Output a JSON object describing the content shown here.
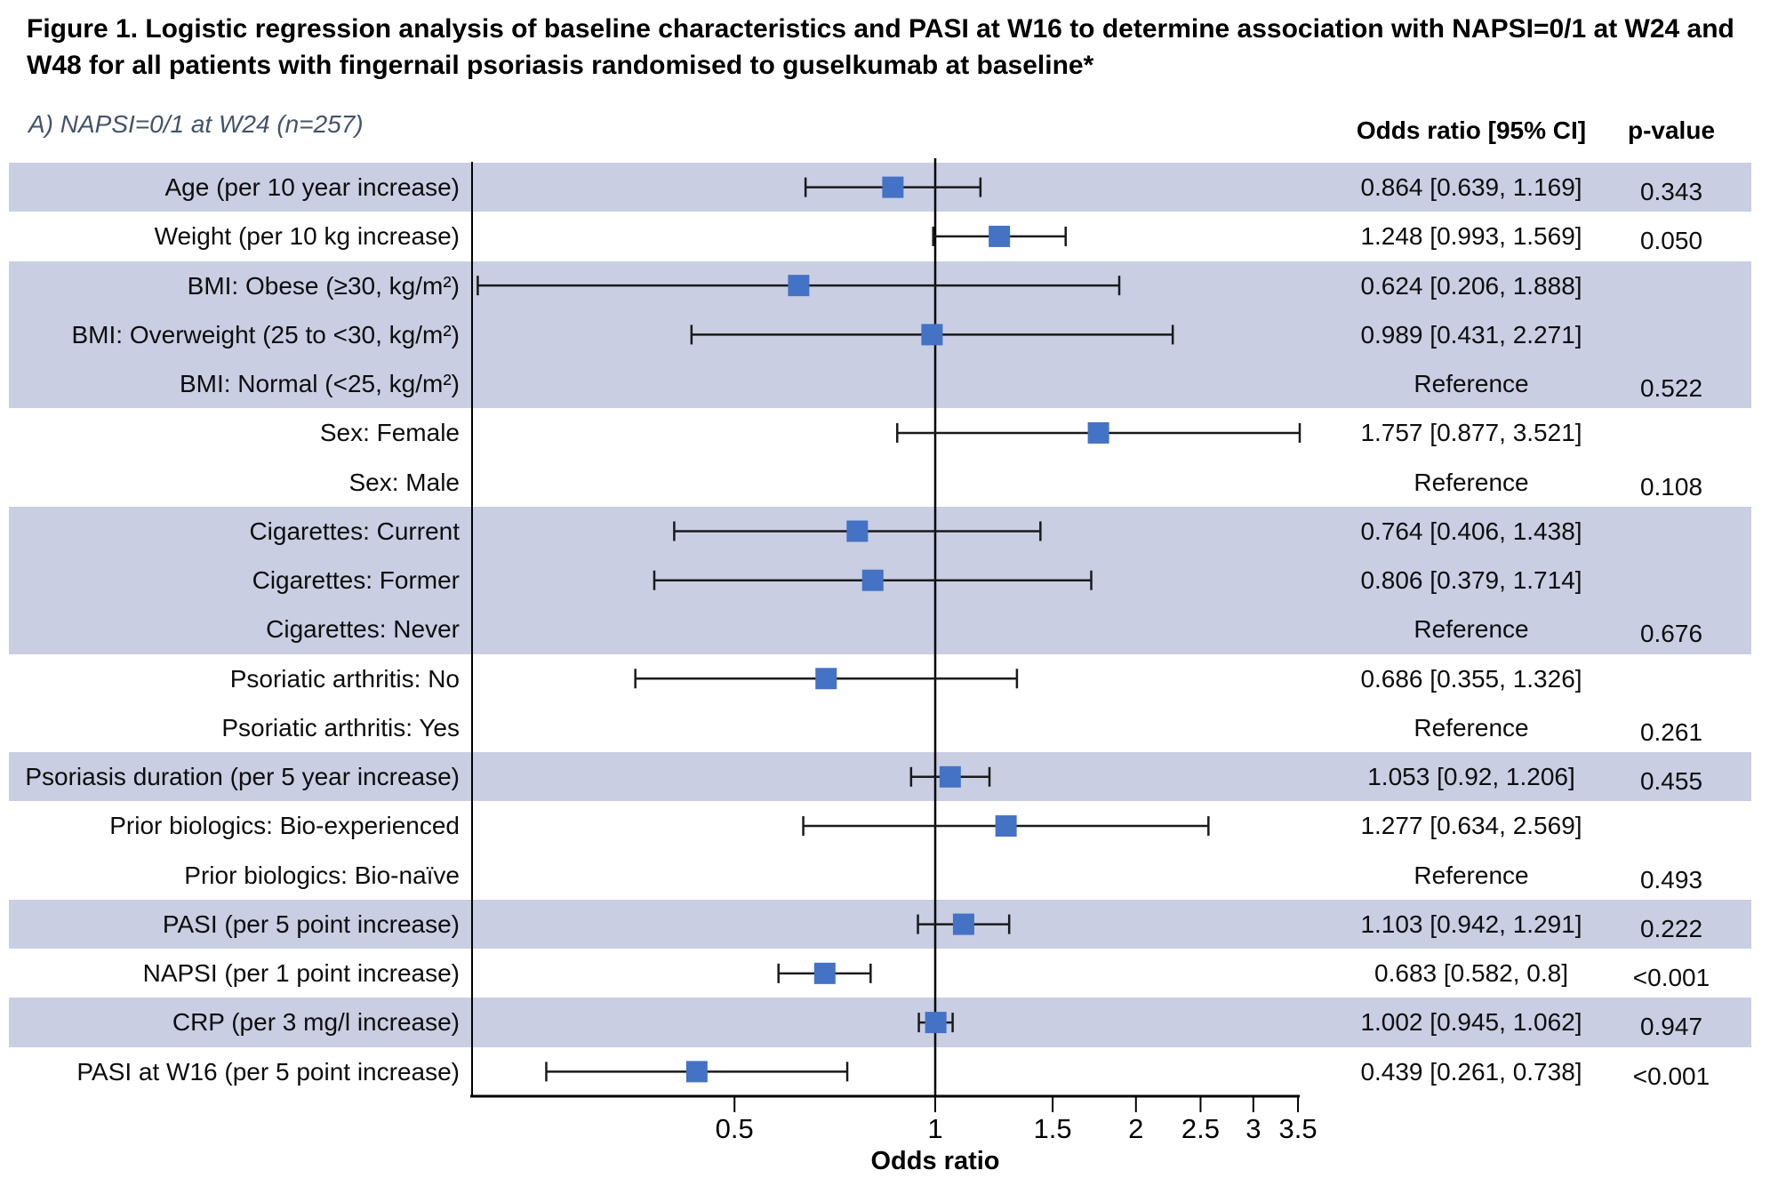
{
  "figure": {
    "title_line1": "Figure 1. Logistic regression analysis of baseline characteristics and PASI at W16 to determine association with NAPSI=0/1 at W24 and",
    "title_line2": "W48 for all patients with fingernail psoriasis randomised to guselkumab at baseline*",
    "subtitle": "A) NAPSI=0/1 at W24 (n=257)"
  },
  "columns": {
    "or_header": "Odds ratio [95% CI]",
    "p_header": "p-value"
  },
  "chart_data": {
    "type": "scatter",
    "subtype": "forest-plot",
    "xscale": "log",
    "xlabel": "Odds ratio",
    "xlim": [
      0.202,
      3.52
    ],
    "reference_line": 1,
    "xticks": [
      0.5,
      1,
      1.5,
      2,
      2.5,
      3,
      3.5
    ],
    "xtick_labels": [
      "0.5",
      "1",
      "1.5",
      "2",
      "2.5",
      "3",
      "3.5"
    ],
    "grid": false,
    "legend": "none",
    "rows": [
      {
        "label": "Age (per 10 year increase)",
        "or": 0.864,
        "ci_low": 0.639,
        "ci_high": 1.169,
        "or_text": "0.864 [0.639, 1.169]",
        "p": "0.343",
        "shaded": true
      },
      {
        "label": "Weight (per 10 kg increase)",
        "or": 1.248,
        "ci_low": 0.993,
        "ci_high": 1.569,
        "or_text": "1.248 [0.993, 1.569]",
        "p": "0.050",
        "shaded": false
      },
      {
        "label": "BMI: Obese (≥30, kg/m²)",
        "or": 0.624,
        "ci_low": 0.206,
        "ci_high": 1.888,
        "or_text": "0.624 [0.206, 1.888]",
        "p": "",
        "shaded": true
      },
      {
        "label": "BMI: Overweight (25 to <30, kg/m²)",
        "or": 0.989,
        "ci_low": 0.431,
        "ci_high": 2.271,
        "or_text": "0.989 [0.431, 2.271]",
        "p": "",
        "shaded": true
      },
      {
        "label": "BMI: Normal (<25, kg/m²)",
        "or": null,
        "ci_low": null,
        "ci_high": null,
        "or_text": "Reference",
        "p": "0.522",
        "shaded": true
      },
      {
        "label": "Sex: Female",
        "or": 1.757,
        "ci_low": 0.877,
        "ci_high": 3.521,
        "or_text": "1.757 [0.877, 3.521]",
        "p": "",
        "shaded": false
      },
      {
        "label": "Sex: Male",
        "or": null,
        "ci_low": null,
        "ci_high": null,
        "or_text": "Reference",
        "p": "0.108",
        "shaded": false
      },
      {
        "label": "Cigarettes: Current",
        "or": 0.764,
        "ci_low": 0.406,
        "ci_high": 1.438,
        "or_text": "0.764 [0.406, 1.438]",
        "p": "",
        "shaded": true
      },
      {
        "label": "Cigarettes: Former",
        "or": 0.806,
        "ci_low": 0.379,
        "ci_high": 1.714,
        "or_text": "0.806 [0.379, 1.714]",
        "p": "",
        "shaded": true
      },
      {
        "label": "Cigarettes: Never",
        "or": null,
        "ci_low": null,
        "ci_high": null,
        "or_text": "Reference",
        "p": "0.676",
        "shaded": true
      },
      {
        "label": "Psoriatic arthritis: No",
        "or": 0.686,
        "ci_low": 0.355,
        "ci_high": 1.326,
        "or_text": "0.686 [0.355, 1.326]",
        "p": "",
        "shaded": false
      },
      {
        "label": "Psoriatic arthritis: Yes",
        "or": null,
        "ci_low": null,
        "ci_high": null,
        "or_text": "Reference",
        "p": "0.261",
        "shaded": false
      },
      {
        "label": "Psoriasis duration (per 5 year increase)",
        "or": 1.053,
        "ci_low": 0.92,
        "ci_high": 1.206,
        "or_text": "1.053 [0.92, 1.206]",
        "p": "0.455",
        "shaded": true
      },
      {
        "label": "Prior biologics: Bio-experienced",
        "or": 1.277,
        "ci_low": 0.634,
        "ci_high": 2.569,
        "or_text": "1.277 [0.634, 2.569]",
        "p": "",
        "shaded": false
      },
      {
        "label": "Prior biologics: Bio-naïve",
        "or": null,
        "ci_low": null,
        "ci_high": null,
        "or_text": "Reference",
        "p": "0.493",
        "shaded": false
      },
      {
        "label": "PASI (per 5 point increase)",
        "or": 1.103,
        "ci_low": 0.942,
        "ci_high": 1.291,
        "or_text": "1.103 [0.942, 1.291]",
        "p": "0.222",
        "shaded": true
      },
      {
        "label": "NAPSI (per 1 point increase)",
        "or": 0.683,
        "ci_low": 0.582,
        "ci_high": 0.8,
        "or_text": "0.683 [0.582, 0.8]",
        "p": "<0.001",
        "shaded": false
      },
      {
        "label": "CRP (per 3 mg/l increase)",
        "or": 1.002,
        "ci_low": 0.945,
        "ci_high": 1.062,
        "or_text": "1.002 [0.945, 1.062]",
        "p": "0.947",
        "shaded": true
      },
      {
        "label": "PASI at W16 (per 5 point increase)",
        "or": 0.439,
        "ci_low": 0.261,
        "ci_high": 0.738,
        "or_text": "0.439 [0.261, 0.738]",
        "p": "<0.001",
        "shaded": false
      }
    ]
  },
  "colors": {
    "row_band": "#c9cee3",
    "marker": "#4472c4",
    "whisker": "#1a1a1a",
    "axis": "#000000",
    "subtitle": "#44546a",
    "title": "#000000"
  }
}
